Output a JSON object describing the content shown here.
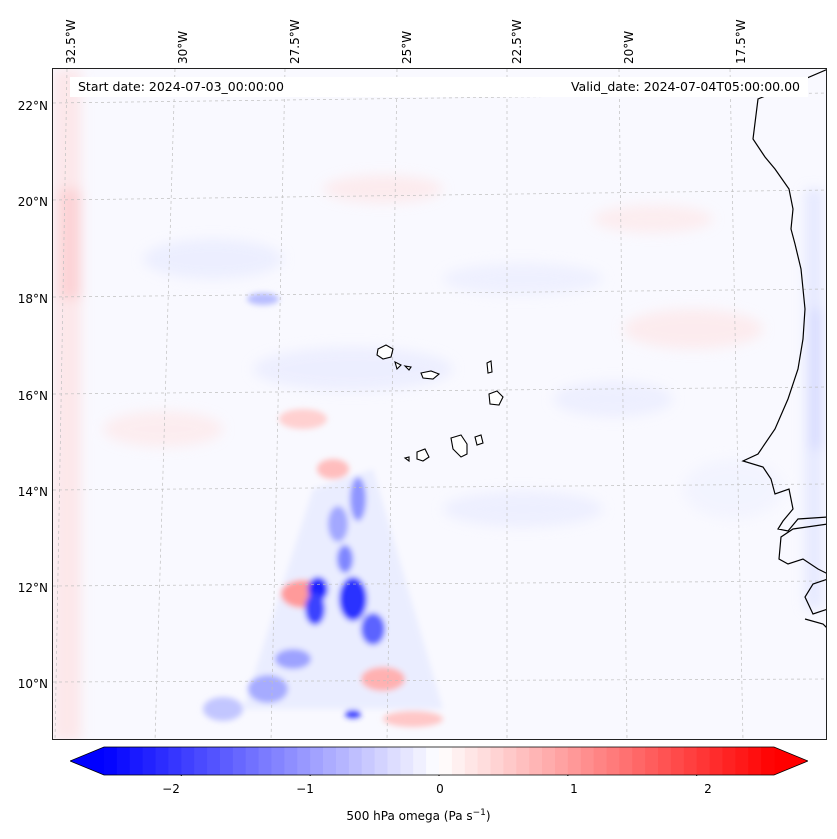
{
  "header": {
    "start_date": "Start date: 2024-07-03_00:00:00",
    "valid_date": "Valid_date: 2024-07-04T05:00:00.00"
  },
  "map": {
    "lon_labels": [
      "32.5°W",
      "30°W",
      "27.5°W",
      "25°W",
      "22.5°W",
      "20°W",
      "17.5°W"
    ],
    "lat_labels": [
      "22°N",
      "20°N",
      "18°N",
      "16°N",
      "14°N",
      "12°N",
      "10°N"
    ],
    "gridlines": "dashed",
    "colormap": "bwr",
    "colors": {
      "negative": "#0000ff",
      "neutral": "#ffffff",
      "positive": "#ff0000",
      "coastline": "#000000"
    }
  },
  "colorbar": {
    "ticks": [
      "−2",
      "−1",
      "0",
      "1",
      "2"
    ],
    "range": [
      -2.6,
      2.6
    ],
    "extend": "both",
    "label": "500 hPa omega (Pa s",
    "label_sup": "−1",
    "label_end": ")"
  }
}
